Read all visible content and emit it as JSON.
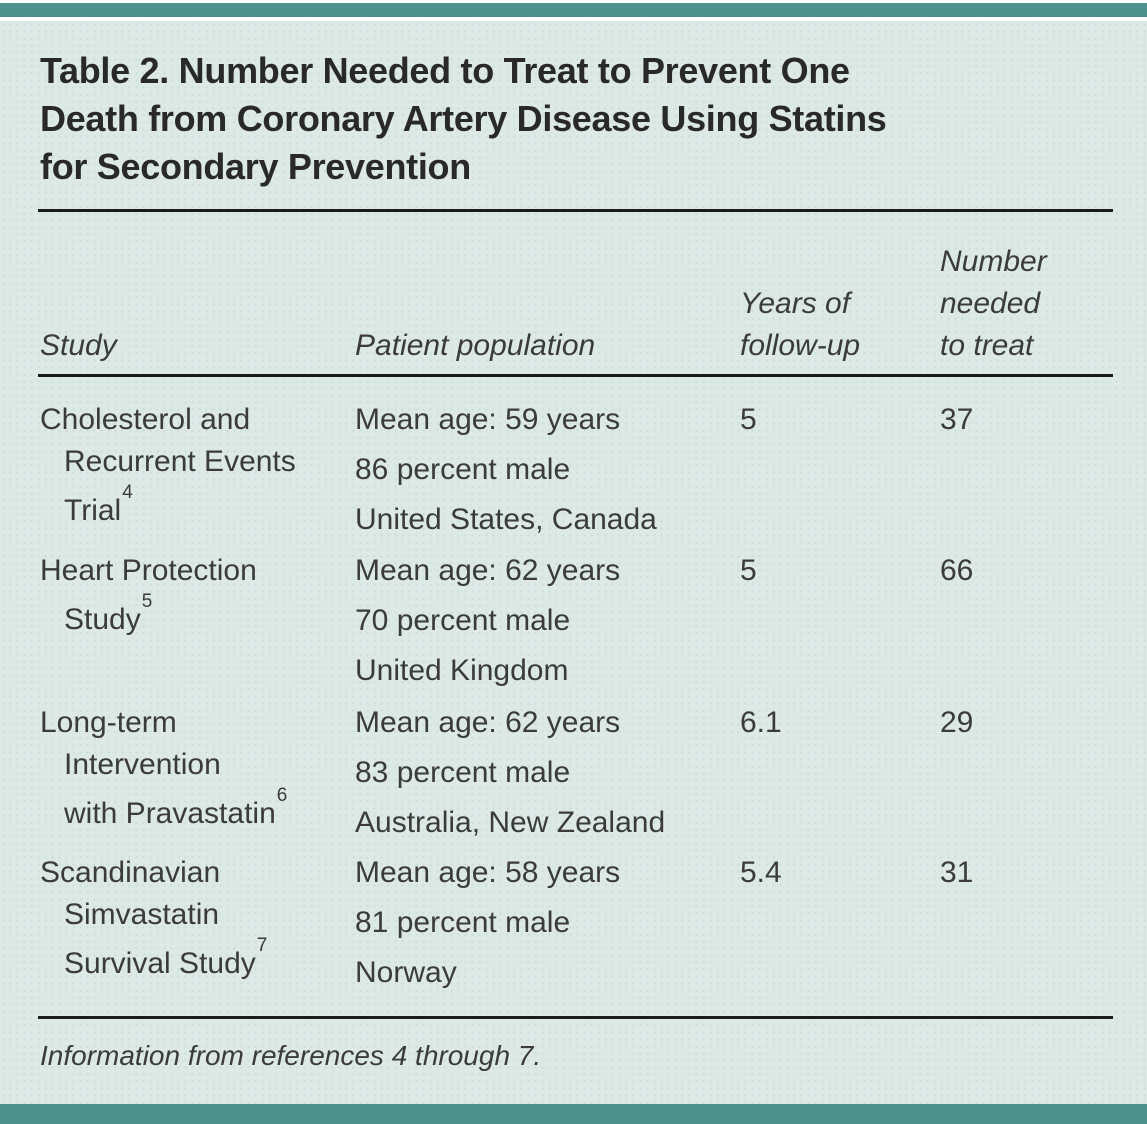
{
  "page": {
    "background_color": "#dce9e6",
    "accent_color": "#4f918d",
    "rule_color": "#1b1b1b"
  },
  "table": {
    "title_lines": [
      "Table 2. Number Needed to Treat to Prevent One",
      "Death from Coronary Artery Disease Using Statins",
      "for Secondary Prevention"
    ],
    "columns": {
      "study": "Study",
      "population": "Patient population",
      "followup_lines": [
        "Years of",
        "follow-up"
      ],
      "nnt_lines": [
        "Number",
        "needed",
        "to treat"
      ]
    },
    "rows": [
      {
        "study_lines": [
          "Cholesterol and",
          "Recurrent Events",
          "Trial"
        ],
        "study_ref": "4",
        "population_lines": [
          "Mean age: 59 years",
          "86 percent male",
          "United States, Canada"
        ],
        "years_of_followup": "5",
        "number_needed_to_treat": "37"
      },
      {
        "study_lines": [
          "Heart Protection",
          "Study"
        ],
        "study_ref": "5",
        "population_lines": [
          "Mean age: 62 years",
          "70 percent male",
          "United Kingdom"
        ],
        "years_of_followup": "5",
        "number_needed_to_treat": "66"
      },
      {
        "study_lines": [
          "Long-term",
          "Intervention",
          "with Pravastatin"
        ],
        "study_ref": "6",
        "population_lines": [
          "Mean age: 62 years",
          "83 percent male",
          "Australia, New Zealand"
        ],
        "years_of_followup": "6.1",
        "number_needed_to_treat": "29"
      },
      {
        "study_lines": [
          "Scandinavian",
          "Simvastatin",
          "Survival Study"
        ],
        "study_ref": "7",
        "population_lines": [
          "Mean age: 58 years",
          "81 percent male",
          "Norway"
        ],
        "years_of_followup": "5.4",
        "number_needed_to_treat": "31"
      }
    ],
    "footnote": "Information from references 4 through 7."
  }
}
